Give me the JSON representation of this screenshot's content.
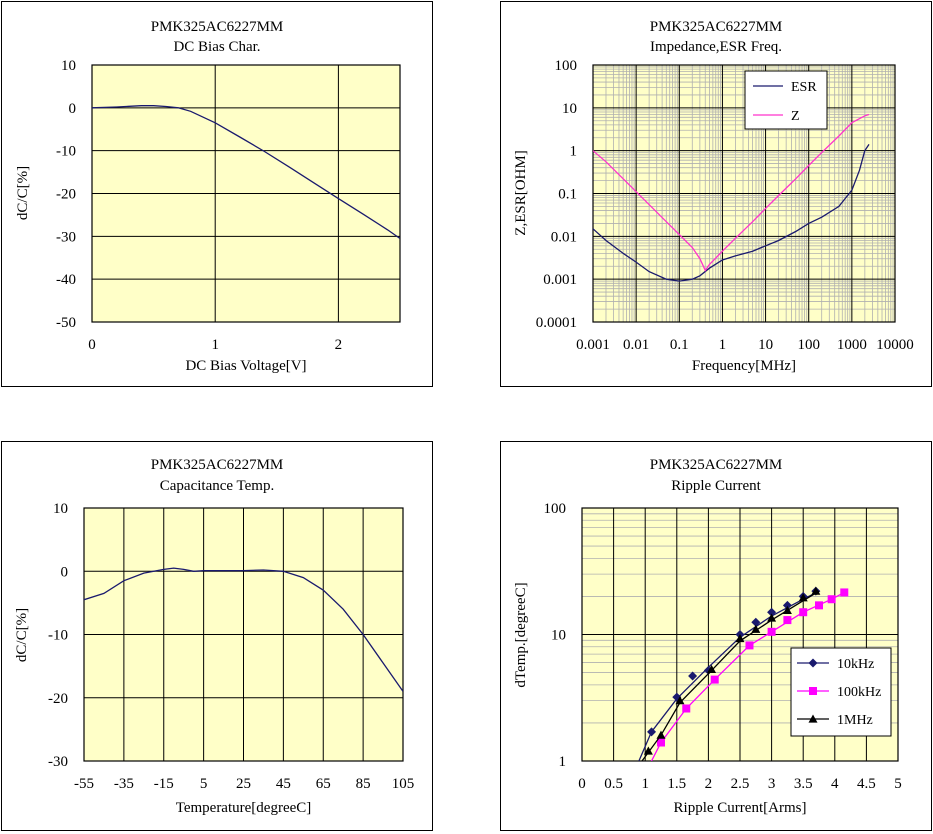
{
  "chart_data": [
    {
      "id": "dc_bias",
      "type": "line",
      "title": "PMK325AC6227MM",
      "subtitle": "DC Bias Char.",
      "xlabel": "DC Bias Voltage[V]",
      "ylabel": "dC/C[%]",
      "xlim": [
        0,
        2.5
      ],
      "ylim": [
        -50,
        10
      ],
      "xticks": [
        0,
        1,
        2
      ],
      "xtick_labels": [
        "0",
        "1",
        "2"
      ],
      "yticks": [
        10,
        0,
        -10,
        -20,
        -30,
        -40,
        -50
      ],
      "ytick_labels": [
        "10",
        "0",
        "-10",
        "-20",
        "-30",
        "-40",
        "-50"
      ],
      "grid": true,
      "background": "#ffffc8",
      "series": [
        {
          "color": "#1a1a6e",
          "x": [
            0,
            0.2,
            0.4,
            0.5,
            0.6,
            0.7,
            0.8,
            1.0,
            1.2,
            1.4,
            1.6,
            1.8,
            2.0,
            2.2,
            2.4,
            2.5
          ],
          "y": [
            0,
            0.2,
            0.5,
            0.5,
            0.3,
            0,
            -0.8,
            -3.5,
            -6.8,
            -10.2,
            -13.8,
            -17.5,
            -21.2,
            -24.8,
            -28.5,
            -30.5
          ]
        }
      ]
    },
    {
      "id": "impedance",
      "type": "line",
      "title": "PMK325AC6227MM",
      "subtitle": "Impedance,ESR  Freq.",
      "xlabel": "Frequency[MHz]",
      "ylabel": "Z,ESR[OHM]",
      "xscale": "log",
      "yscale": "log",
      "xlim": [
        0.001,
        10000
      ],
      "ylim": [
        0.0001,
        100
      ],
      "xticks": [
        0.001,
        0.01,
        0.1,
        1,
        10,
        100,
        1000,
        10000
      ],
      "xtick_labels": [
        "0.001",
        "0.01",
        "0.1",
        "1",
        "10",
        "100",
        "1000",
        "10000"
      ],
      "yticks": [
        100,
        10,
        1,
        0.1,
        0.01,
        0.001,
        0.0001
      ],
      "ytick_labels": [
        "100",
        "10",
        "1",
        "0.1",
        "0.01",
        "0.001",
        "0.0001"
      ],
      "grid": true,
      "legend_position": "top-center",
      "background": "#ffffc8",
      "series": [
        {
          "name": "ESR",
          "color": "#1a1a6e",
          "x": [
            0.001,
            0.002,
            0.005,
            0.01,
            0.02,
            0.05,
            0.1,
            0.2,
            0.3,
            0.5,
            1,
            2,
            5,
            10,
            20,
            50,
            100,
            200,
            500,
            1000,
            1500,
            2000,
            2500
          ],
          "y": [
            0.015,
            0.008,
            0.004,
            0.0025,
            0.0015,
            0.001,
            0.0009,
            0.001,
            0.0012,
            0.0018,
            0.0028,
            0.0035,
            0.0045,
            0.006,
            0.008,
            0.013,
            0.02,
            0.028,
            0.05,
            0.12,
            0.35,
            1.0,
            1.4
          ]
        },
        {
          "name": "Z",
          "color": "#ff33cc",
          "x": [
            0.001,
            0.002,
            0.005,
            0.01,
            0.02,
            0.05,
            0.1,
            0.2,
            0.3,
            0.4,
            0.5,
            1,
            2,
            5,
            10,
            20,
            50,
            100,
            200,
            500,
            1000,
            2000,
            2500
          ],
          "y": [
            1.0,
            0.55,
            0.22,
            0.11,
            0.055,
            0.022,
            0.011,
            0.0055,
            0.003,
            0.0016,
            0.0022,
            0.0045,
            0.009,
            0.022,
            0.045,
            0.09,
            0.22,
            0.45,
            0.9,
            2.2,
            4.5,
            6.5,
            7.0
          ]
        }
      ]
    },
    {
      "id": "cap_temp",
      "type": "line",
      "title": "PMK325AC6227MM",
      "subtitle": "Capacitance Temp.",
      "xlabel": "Temperature[degreeC]",
      "ylabel": "dC/C[%]",
      "xlim": [
        -55,
        105
      ],
      "ylim": [
        -30,
        10
      ],
      "xticks": [
        -55,
        -35,
        -15,
        5,
        25,
        45,
        65,
        85,
        105
      ],
      "xtick_labels": [
        "-55",
        "-35",
        "-15",
        "5",
        "25",
        "45",
        "65",
        "85",
        "105"
      ],
      "yticks": [
        10,
        0,
        -10,
        -20,
        -30
      ],
      "ytick_labels": [
        "10",
        "0",
        "-10",
        "-20",
        "-30"
      ],
      "grid": true,
      "background": "#ffffc8",
      "series": [
        {
          "color": "#1a1a6e",
          "x": [
            -55,
            -45,
            -35,
            -25,
            -15,
            -10,
            -5,
            0,
            5,
            15,
            25,
            35,
            45,
            55,
            65,
            75,
            85,
            95,
            105
          ],
          "y": [
            -4.5,
            -3.5,
            -1.5,
            -0.3,
            0.3,
            0.5,
            0.3,
            0,
            0.1,
            0.1,
            0.1,
            0.2,
            0,
            -1,
            -3,
            -6,
            -10,
            -14.5,
            -19
          ]
        }
      ]
    },
    {
      "id": "ripple",
      "type": "scatter",
      "title": "PMK325AC6227MM",
      "subtitle": "Ripple Current",
      "xlabel": "Ripple Current[Arms]",
      "ylabel": "dTemp.[degreeC]",
      "yscale": "log",
      "xlim": [
        0,
        5
      ],
      "ylim": [
        1,
        100
      ],
      "xticks": [
        0,
        0.5,
        1,
        1.5,
        2,
        2.5,
        3,
        3.5,
        4,
        4.5,
        5
      ],
      "xtick_labels": [
        "0",
        "0.5",
        "1",
        "1.5",
        "2",
        "2.5",
        "3",
        "3.5",
        "4",
        "4.5",
        "5"
      ],
      "yticks": [
        100,
        10,
        1
      ],
      "ytick_labels": [
        "100",
        "10",
        "1"
      ],
      "grid": true,
      "legend_position": "bottom-right",
      "background": "#ffffc8",
      "series": [
        {
          "name": "10kHz",
          "color": "#1a1a6e",
          "marker": "diamond",
          "x": [
            1.1,
            1.5,
            1.75,
            2.0,
            2.5,
            2.75,
            3.0,
            3.25,
            3.5,
            3.7
          ],
          "y": [
            1.7,
            3.2,
            4.7,
            5.2,
            10.0,
            12.5,
            15.0,
            17.0,
            20.0,
            22.0
          ],
          "curve_x": [
            0.9,
            1.1,
            1.5,
            2.0,
            2.5,
            3.0,
            3.5,
            3.75
          ],
          "curve_y": [
            1.0,
            1.7,
            3.1,
            5.5,
            9.5,
            14.0,
            19.0,
            22.0
          ]
        },
        {
          "name": "100kHz",
          "color": "#ff00ff",
          "marker": "square",
          "x": [
            1.25,
            1.65,
            2.1,
            2.65,
            3.0,
            3.25,
            3.5,
            3.75,
            3.95,
            4.15
          ],
          "y": [
            1.4,
            2.6,
            4.4,
            8.2,
            10.5,
            13.0,
            15.0,
            17.0,
            19.0,
            21.5
          ],
          "curve_x": [
            1.1,
            1.25,
            1.65,
            2.1,
            2.65,
            3.0,
            3.5,
            3.95,
            4.15
          ],
          "curve_y": [
            1.0,
            1.4,
            2.6,
            4.4,
            8.2,
            10.5,
            15.0,
            19.0,
            21.5
          ]
        },
        {
          "name": "1MHz",
          "color": "#000000",
          "marker": "triangle",
          "x": [
            1.05,
            1.25,
            1.55,
            2.05,
            2.5,
            2.75,
            3.0,
            3.25,
            3.5,
            3.7
          ],
          "y": [
            1.2,
            1.6,
            3.0,
            5.3,
            9.3,
            11.0,
            13.5,
            15.5,
            19.5,
            22.0
          ],
          "curve_x": [
            0.95,
            1.25,
            1.55,
            2.05,
            2.5,
            3.0,
            3.5,
            3.75
          ],
          "curve_y": [
            1.0,
            1.6,
            2.9,
            5.2,
            8.9,
            13.0,
            18.5,
            22.0
          ]
        }
      ]
    }
  ]
}
